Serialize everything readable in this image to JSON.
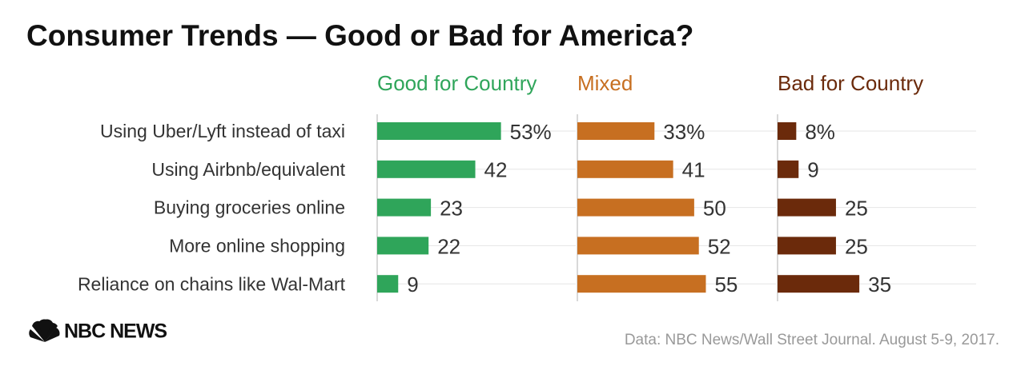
{
  "chart_data": {
    "type": "bar",
    "title": "Consumer Trends — Good or Bad for America?",
    "categories": [
      "Using Uber/Lyft instead of taxi",
      "Using Airbnb/equivalent",
      "Buying groceries online",
      "More online shopping",
      "Reliance on chains like Wal-Mart"
    ],
    "series": [
      {
        "name": "Good for Country",
        "color": "#2fa55a",
        "values": [
          53,
          42,
          23,
          22,
          9
        ],
        "value_labels": [
          "53%",
          "42",
          "23",
          "22",
          "9"
        ]
      },
      {
        "name": "Mixed",
        "color": "#c76f21",
        "values": [
          33,
          41,
          50,
          52,
          55
        ],
        "value_labels": [
          "33%",
          "41",
          "50",
          "52",
          "55"
        ]
      },
      {
        "name": "Bad for Country",
        "color": "#6b2a0b",
        "values": [
          8,
          9,
          25,
          25,
          35
        ],
        "value_labels": [
          "8%",
          "9",
          "25",
          "25",
          "35"
        ]
      }
    ],
    "xlim": [
      0,
      85
    ],
    "source": "Data: NBC News/Wall Street Journal. August 5-9, 2017.",
    "logo": "NBC NEWS"
  }
}
